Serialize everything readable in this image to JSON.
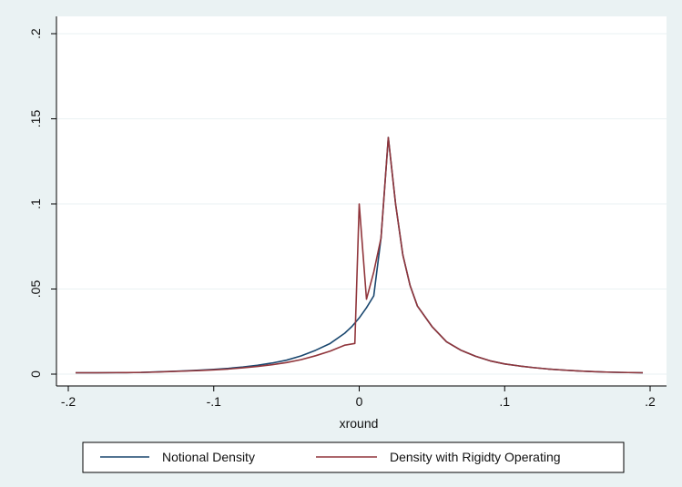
{
  "chart_data": {
    "type": "line",
    "title": "",
    "xlabel": "xround",
    "ylabel": "",
    "xlim": [
      -0.2,
      0.2
    ],
    "ylim": [
      0,
      0.2
    ],
    "grid": true,
    "legend_position": "bottom",
    "x_ticks": [
      {
        "value": -0.2,
        "label": "-.2"
      },
      {
        "value": -0.1,
        "label": "-.1"
      },
      {
        "value": 0,
        "label": "0"
      },
      {
        "value": 0.1,
        "label": ".1"
      },
      {
        "value": 0.2,
        "label": ".2"
      }
    ],
    "y_ticks": [
      {
        "value": 0,
        "label": "0"
      },
      {
        "value": 0.05,
        "label": ".05"
      },
      {
        "value": 0.1,
        "label": ".1"
      },
      {
        "value": 0.15,
        "label": ".15"
      },
      {
        "value": 0.2,
        "label": ".2"
      }
    ],
    "series": [
      {
        "name": "Notional Density",
        "color": "#1a476f",
        "points": [
          [
            -0.195,
            0.0008
          ],
          [
            -0.18,
            0.0008
          ],
          [
            -0.16,
            0.0009
          ],
          [
            -0.15,
            0.001
          ],
          [
            -0.14,
            0.0013
          ],
          [
            -0.13,
            0.0016
          ],
          [
            -0.12,
            0.0019
          ],
          [
            -0.11,
            0.0023
          ],
          [
            -0.1,
            0.0028
          ],
          [
            -0.09,
            0.0034
          ],
          [
            -0.08,
            0.0042
          ],
          [
            -0.07,
            0.0052
          ],
          [
            -0.06,
            0.0065
          ],
          [
            -0.05,
            0.0082
          ],
          [
            -0.04,
            0.0107
          ],
          [
            -0.03,
            0.014
          ],
          [
            -0.02,
            0.018
          ],
          [
            -0.01,
            0.024
          ],
          [
            -0.005,
            0.028
          ],
          [
            0,
            0.033
          ],
          [
            0.005,
            0.039
          ],
          [
            0.01,
            0.046
          ],
          [
            0.015,
            0.08
          ],
          [
            0.02,
            0.139
          ],
          [
            0.025,
            0.1
          ],
          [
            0.03,
            0.07
          ],
          [
            0.035,
            0.052
          ],
          [
            0.04,
            0.04
          ],
          [
            0.05,
            0.028
          ],
          [
            0.06,
            0.019
          ],
          [
            0.07,
            0.014
          ],
          [
            0.08,
            0.0105
          ],
          [
            0.09,
            0.0078
          ],
          [
            0.1,
            0.006
          ],
          [
            0.11,
            0.0048
          ],
          [
            0.12,
            0.0038
          ],
          [
            0.13,
            0.003
          ],
          [
            0.14,
            0.0024
          ],
          [
            0.15,
            0.0019
          ],
          [
            0.16,
            0.0015
          ],
          [
            0.17,
            0.0012
          ],
          [
            0.18,
            0.001
          ],
          [
            0.195,
            0.0008
          ]
        ]
      },
      {
        "name": "Density with Rigidty Operating",
        "color": "#90353b",
        "points": [
          [
            -0.195,
            0.0008
          ],
          [
            -0.18,
            0.0008
          ],
          [
            -0.16,
            0.0009
          ],
          [
            -0.15,
            0.001
          ],
          [
            -0.14,
            0.0012
          ],
          [
            -0.13,
            0.0015
          ],
          [
            -0.12,
            0.0018
          ],
          [
            -0.11,
            0.0021
          ],
          [
            -0.1,
            0.0025
          ],
          [
            -0.09,
            0.003
          ],
          [
            -0.08,
            0.0037
          ],
          [
            -0.07,
            0.0045
          ],
          [
            -0.06,
            0.0055
          ],
          [
            -0.05,
            0.0068
          ],
          [
            -0.04,
            0.0085
          ],
          [
            -0.03,
            0.0108
          ],
          [
            -0.02,
            0.0135
          ],
          [
            -0.01,
            0.017
          ],
          [
            -0.003,
            0.018
          ],
          [
            0,
            0.1
          ],
          [
            0.005,
            0.044
          ],
          [
            0.01,
            0.06
          ],
          [
            0.015,
            0.08
          ],
          [
            0.02,
            0.139
          ],
          [
            0.025,
            0.1
          ],
          [
            0.03,
            0.07
          ],
          [
            0.035,
            0.052
          ],
          [
            0.04,
            0.04
          ],
          [
            0.05,
            0.028
          ],
          [
            0.06,
            0.019
          ],
          [
            0.07,
            0.014
          ],
          [
            0.08,
            0.0105
          ],
          [
            0.09,
            0.0078
          ],
          [
            0.1,
            0.006
          ],
          [
            0.11,
            0.0048
          ],
          [
            0.12,
            0.0038
          ],
          [
            0.13,
            0.003
          ],
          [
            0.14,
            0.0024
          ],
          [
            0.15,
            0.0019
          ],
          [
            0.16,
            0.0015
          ],
          [
            0.17,
            0.0012
          ],
          [
            0.18,
            0.001
          ],
          [
            0.195,
            0.0008
          ]
        ]
      }
    ]
  }
}
